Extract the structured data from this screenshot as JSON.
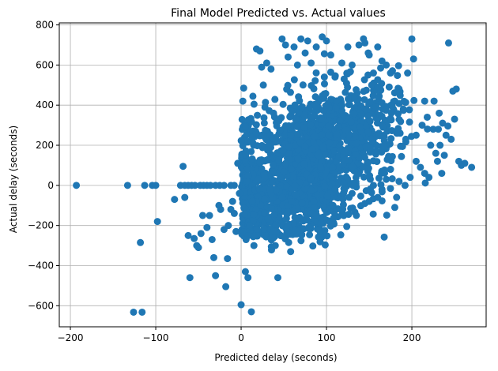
{
  "chart_data": {
    "type": "scatter",
    "title": "Final Model Predicted vs. Actual values",
    "xlabel": "Predicted delay (seconds)",
    "ylabel": "Actual delay (seconds)",
    "xlim": [
      -213,
      287
    ],
    "ylim": [
      -705,
      810
    ],
    "x_ticks": [
      -200,
      -100,
      0,
      100,
      200
    ],
    "y_ticks": [
      -600,
      -400,
      -200,
      0,
      200,
      400,
      600,
      800
    ],
    "x_tick_labels": [
      "−200",
      "−100",
      "0",
      "100",
      "200"
    ],
    "y_tick_labels": [
      "−600",
      "−400",
      "−200",
      "0",
      "200",
      "400",
      "600",
      "800"
    ],
    "grid": true,
    "legend": "none",
    "marker_color": "#1f77b4",
    "point_count_note": "dense cloud",
    "points": [
      [
        -193,
        0
      ],
      [
        -133,
        0
      ],
      [
        -113,
        0
      ],
      [
        -104,
        0
      ],
      [
        -100,
        0
      ],
      [
        -98,
        -180
      ],
      [
        -118,
        -285
      ],
      [
        -126,
        -632
      ],
      [
        -116,
        -632
      ],
      [
        -78,
        -70
      ],
      [
        -71,
        0
      ],
      [
        -68,
        95
      ],
      [
        -66,
        -60
      ],
      [
        -62,
        -250
      ],
      [
        -60,
        -460
      ],
      [
        -55,
        -265
      ],
      [
        -52,
        -300
      ],
      [
        -50,
        -310
      ],
      [
        -47,
        -240
      ],
      [
        -45,
        -150
      ],
      [
        -40,
        -210
      ],
      [
        -37,
        -150
      ],
      [
        -34,
        -270
      ],
      [
        -32,
        -360
      ],
      [
        -30,
        -450
      ],
      [
        -26,
        -100
      ],
      [
        -24,
        -120
      ],
      [
        -20,
        -220
      ],
      [
        -18,
        -505
      ],
      [
        -16,
        -365
      ],
      [
        -15,
        -200
      ],
      [
        -12,
        -120
      ],
      [
        -10,
        -80
      ],
      [
        -8,
        -140
      ],
      [
        -6,
        -230
      ],
      [
        -4,
        110
      ],
      [
        -2,
        -40
      ],
      [
        0,
        -595
      ],
      [
        2,
        420
      ],
      [
        3,
        485
      ],
      [
        5,
        -430
      ],
      [
        8,
        -460
      ],
      [
        10,
        -200
      ],
      [
        12,
        -630
      ],
      [
        13,
        -80
      ],
      [
        15,
        -300
      ],
      [
        18,
        680
      ],
      [
        22,
        670
      ],
      [
        26,
        500
      ],
      [
        30,
        610
      ],
      [
        35,
        580
      ],
      [
        38,
        -230
      ],
      [
        40,
        -300
      ],
      [
        43,
        -460
      ],
      [
        48,
        730
      ],
      [
        52,
        700
      ],
      [
        55,
        640
      ],
      [
        58,
        -330
      ],
      [
        62,
        690
      ],
      [
        66,
        600
      ],
      [
        70,
        730
      ],
      [
        75,
        660
      ],
      [
        78,
        720
      ],
      [
        82,
        610
      ],
      [
        88,
        690
      ],
      [
        95,
        740
      ],
      [
        100,
        720
      ],
      [
        105,
        650
      ],
      [
        110,
        540
      ],
      [
        118,
        610
      ],
      [
        125,
        690
      ],
      [
        130,
        600
      ],
      [
        138,
        700
      ],
      [
        145,
        710
      ],
      [
        150,
        650
      ],
      [
        155,
        560
      ],
      [
        160,
        690
      ],
      [
        165,
        620
      ],
      [
        170,
        600
      ],
      [
        175,
        560
      ],
      [
        180,
        420
      ],
      [
        185,
        480
      ],
      [
        190,
        380
      ],
      [
        195,
        560
      ],
      [
        200,
        730
      ],
      [
        202,
        630
      ],
      [
        205,
        120
      ],
      [
        210,
        90
      ],
      [
        215,
        60
      ],
      [
        220,
        40
      ],
      [
        225,
        280
      ],
      [
        228,
        160
      ],
      [
        230,
        120
      ],
      [
        232,
        360
      ],
      [
        235,
        60
      ],
      [
        238,
        150
      ],
      [
        240,
        250
      ],
      [
        243,
        710
      ],
      [
        246,
        230
      ],
      [
        248,
        470
      ],
      [
        250,
        330
      ],
      [
        252,
        480
      ],
      [
        255,
        120
      ],
      [
        258,
        100
      ],
      [
        262,
        110
      ],
      [
        270,
        90
      ],
      [
        150,
        -80
      ],
      [
        160,
        -60
      ],
      [
        170,
        30
      ],
      [
        180,
        -110
      ],
      [
        130,
        -40
      ],
      [
        120,
        10
      ],
      [
        110,
        -20
      ],
      [
        145,
        -90
      ],
      [
        135,
        -150
      ],
      [
        155,
        0
      ],
      [
        165,
        -20
      ],
      [
        175,
        80
      ],
      [
        185,
        20
      ],
      [
        192,
        0
      ],
      [
        198,
        40
      ],
      [
        205,
        250
      ],
      [
        212,
        300
      ],
      [
        215,
        420
      ],
      [
        218,
        340
      ],
      [
        222,
        200
      ],
      [
        226,
        420
      ],
      [
        231,
        280
      ],
      [
        233,
        200
      ],
      [
        236,
        310
      ],
      [
        -8,
        0
      ],
      [
        -12,
        0
      ],
      [
        -20,
        0
      ],
      [
        -25,
        0
      ],
      [
        -30,
        0
      ],
      [
        -36,
        0
      ],
      [
        -40,
        0
      ],
      [
        -44,
        0
      ],
      [
        -48,
        0
      ],
      [
        -54,
        0
      ],
      [
        -58,
        0
      ],
      [
        -62,
        0
      ],
      [
        -66,
        0
      ]
    ],
    "cloud": {
      "x_range": [
        0,
        200
      ],
      "center_x": 85,
      "center_y": 170,
      "note": "dense overlapping markers"
    }
  }
}
